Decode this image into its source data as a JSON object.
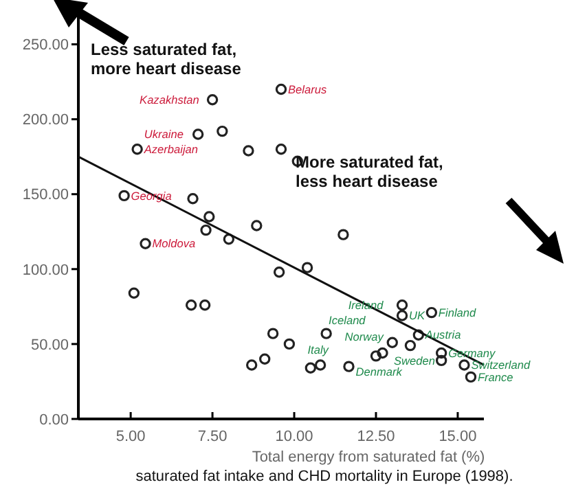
{
  "chart_data": {
    "type": "scatter",
    "xlabel": "Total energy from saturated fat (%)",
    "xlim": [
      3.4,
      15.8
    ],
    "ylim": [
      0,
      275
    ],
    "xticks": [
      {
        "value": 5,
        "label": "5.00"
      },
      {
        "value": 7.5,
        "label": "7.50"
      },
      {
        "value": 10,
        "label": "10.00"
      },
      {
        "value": 12.5,
        "label": "12.50"
      },
      {
        "value": 15,
        "label": "15.00"
      }
    ],
    "yticks": [
      {
        "value": 0,
        "label": "0.00"
      },
      {
        "value": 50,
        "label": "50.00"
      },
      {
        "value": 100,
        "label": "100.00"
      },
      {
        "value": 150,
        "label": "150.00"
      },
      {
        "value": 200,
        "label": "200.00"
      },
      {
        "value": 250,
        "label": "250.00"
      }
    ],
    "grid": false,
    "marker": "circle",
    "series": [
      {
        "color": "#222222",
        "x": [
          7.5,
          7.06,
          7.8,
          5.2,
          8.6,
          9.6,
          9.6,
          10.1,
          4.8,
          6.9,
          7.4,
          7.3,
          8.0,
          5.45,
          8.85,
          11.5,
          10.4,
          5.1,
          6.85,
          7.27,
          8.7,
          9.1,
          9.35,
          9.85,
          10.5,
          10.8,
          10.98,
          9.54,
          11.67,
          12.5,
          12.7,
          13.0,
          13.3,
          13.3,
          14.2,
          13.55,
          13.8,
          14.5,
          14.5,
          15.2,
          15.4
        ],
        "values": [
          213,
          190,
          192,
          180,
          179,
          220,
          180,
          172,
          149,
          147,
          135,
          126,
          120,
          117,
          129,
          123,
          101,
          84,
          76,
          76,
          36,
          40,
          57,
          50,
          34,
          36,
          57,
          98,
          35,
          42,
          44,
          51,
          76,
          69,
          71,
          49,
          56,
          44,
          39,
          36,
          28
        ]
      },
      {
        "type": "line",
        "marker": "none",
        "color": "#111111",
        "x": [
          3.4,
          15.8
        ],
        "values": [
          175,
          36
        ]
      }
    ],
    "annotations": [
      "Less saturated fat,\nmore heart disease",
      "More saturated fat,\nless heart disease",
      "saturated fat intake and CHD mortality in Europe (1998).",
      {
        "text": "Kazakhstan",
        "x": 7.5,
        "y": 213
      },
      {
        "text": "Ukraine",
        "x": 7.06,
        "y": 190
      },
      {
        "text": "Azerbaijan",
        "x": 5.2,
        "y": 180
      },
      {
        "text": "Belarus",
        "x": 9.6,
        "y": 220
      },
      {
        "text": "Georgia",
        "x": 4.8,
        "y": 149
      },
      {
        "text": "Moldova",
        "x": 5.45,
        "y": 117
      },
      {
        "text": "Ireland",
        "x": 13.3,
        "y": 76
      },
      {
        "text": "UK",
        "x": 13.3,
        "y": 69
      },
      {
        "text": "Finland",
        "x": 14.2,
        "y": 71
      },
      {
        "text": "Austria",
        "x": 13.8,
        "y": 56
      },
      {
        "text": "Norway",
        "x": 13.0,
        "y": 51
      },
      {
        "text": "Denmark",
        "x": 11.67,
        "y": 35
      },
      {
        "text": "Italy",
        "x": 11.67,
        "y": 35
      },
      {
        "text": "Iceland",
        "x": 12.7,
        "y": 44
      },
      {
        "text": "Sweden",
        "x": 14.5,
        "y": 39
      },
      {
        "text": "Germany",
        "x": 14.5,
        "y": 44
      },
      {
        "text": "Switzerland",
        "x": 15.2,
        "y": 36
      },
      {
        "text": "France",
        "x": 15.4,
        "y": 28
      }
    ]
  }
}
